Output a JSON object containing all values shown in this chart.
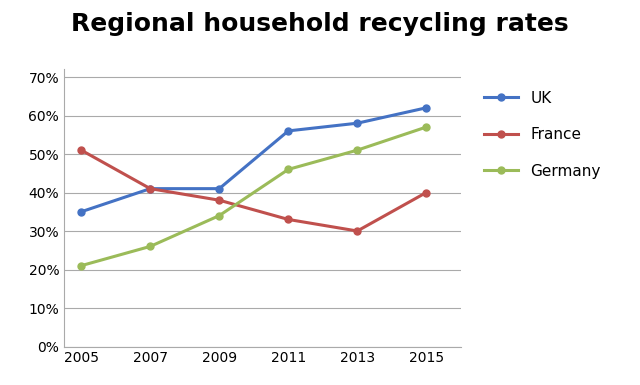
{
  "title": "Regional household recycling rates",
  "title_fontsize": 18,
  "title_fontweight": "bold",
  "years": [
    2005,
    2007,
    2009,
    2011,
    2013,
    2015
  ],
  "series": [
    {
      "label": "UK",
      "color": "#4472C4",
      "values": [
        0.35,
        0.41,
        0.41,
        0.56,
        0.58,
        0.62
      ]
    },
    {
      "label": "France",
      "color": "#C0504D",
      "values": [
        0.51,
        0.41,
        0.38,
        0.33,
        0.3,
        0.4
      ]
    },
    {
      "label": "Germany",
      "color": "#9BBB59",
      "values": [
        0.21,
        0.26,
        0.34,
        0.46,
        0.51,
        0.57
      ]
    }
  ],
  "ylim": [
    0.0,
    0.72
  ],
  "yticks": [
    0.0,
    0.1,
    0.2,
    0.3,
    0.4,
    0.5,
    0.6,
    0.7
  ],
  "xlim": [
    2004.5,
    2016.0
  ],
  "xticks": [
    2005,
    2007,
    2009,
    2011,
    2013,
    2015
  ],
  "grid_color": "#AAAAAA",
  "background_color": "#FFFFFF",
  "legend_fontsize": 11,
  "line_width": 2.2,
  "marker": "o",
  "marker_size": 5
}
